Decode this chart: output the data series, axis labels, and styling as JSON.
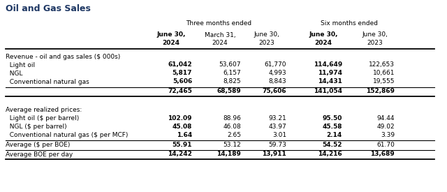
{
  "title": "Oil and Gas Sales",
  "title_color": "#1F3864",
  "header_group1": "Three months ended",
  "header_group2": "Six months ended",
  "col_headers_line1": [
    "June 30,",
    "March 31,",
    "June 30,",
    "June 30,",
    "June 30,"
  ],
  "col_headers_line2": [
    "2024",
    "2024",
    "2023",
    "2024",
    "2023"
  ],
  "col_bold": [
    true,
    false,
    false,
    true,
    false
  ],
  "section1_label": "Revenue - oil and gas sales ($ 000s)",
  "rows_section1": [
    {
      "label": "  Light oil",
      "vals": [
        "61,042",
        "53,607",
        "61,770",
        "114,649",
        "122,653"
      ],
      "bold_cols": [
        0,
        3
      ]
    },
    {
      "label": "  NGL",
      "vals": [
        "5,817",
        "6,157",
        "4,993",
        "11,974",
        "10,661"
      ],
      "bold_cols": [
        0,
        3
      ]
    },
    {
      "label": "  Conventional natural gas",
      "vals": [
        "5,606",
        "8,825",
        "8,843",
        "14,431",
        "19,555"
      ],
      "bold_cols": [
        0,
        3
      ]
    },
    {
      "label": "",
      "vals": [
        "72,465",
        "68,589",
        "75,606",
        "141,054",
        "152,869"
      ],
      "bold_cols": [
        0,
        1,
        2,
        3,
        4
      ],
      "top_border": true,
      "bottom_border": true
    }
  ],
  "section2_label": "Average realized prices:",
  "rows_section2": [
    {
      "label": "  Light oil ($ per barrel)",
      "vals": [
        "102.09",
        "88.96",
        "93.21",
        "95.50",
        "94.44"
      ],
      "bold_cols": [
        0,
        3
      ]
    },
    {
      "label": "  NGL ($ per barrel)",
      "vals": [
        "45.08",
        "46.08",
        "43.97",
        "45.58",
        "49.02"
      ],
      "bold_cols": [
        0,
        3
      ]
    },
    {
      "label": "  Conventional natural gas ($ per MCF)",
      "vals": [
        "1.64",
        "2.65",
        "3.01",
        "2.14",
        "3.39"
      ],
      "bold_cols": [
        0,
        3
      ]
    },
    {
      "label": "Average ($ per BOE)",
      "vals": [
        "55.91",
        "53.12",
        "59.73",
        "54.52",
        "61.70"
      ],
      "bold_cols": [
        0,
        3
      ],
      "top_border": true
    },
    {
      "label": "Average BOE per day",
      "vals": [
        "14,242",
        "14,189",
        "13,911",
        "14,216",
        "13,689"
      ],
      "bold_cols": [
        0,
        1,
        2,
        3,
        4
      ],
      "top_border": true,
      "bottom_border": true
    }
  ],
  "background_color": "#ffffff",
  "line_color": "#000000",
  "font_size": 7.0
}
